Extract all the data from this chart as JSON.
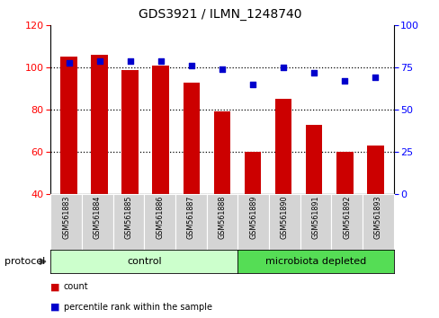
{
  "title": "GDS3921 / ILMN_1248740",
  "samples": [
    "GSM561883",
    "GSM561884",
    "GSM561885",
    "GSM561886",
    "GSM561887",
    "GSM561888",
    "GSM561889",
    "GSM561890",
    "GSM561891",
    "GSM561892",
    "GSM561893"
  ],
  "counts": [
    105,
    106,
    99,
    101,
    93,
    79,
    60,
    85,
    73,
    60,
    63
  ],
  "percentile_ranks": [
    78,
    79,
    79,
    79,
    76,
    74,
    65,
    75,
    72,
    67,
    69
  ],
  "bar_color": "#cc0000",
  "dot_color": "#0000cc",
  "ylim_left": [
    40,
    120
  ],
  "ylim_right": [
    0,
    100
  ],
  "yticks_left": [
    40,
    60,
    80,
    100,
    120
  ],
  "yticks_right": [
    0,
    25,
    50,
    75,
    100
  ],
  "num_control": 6,
  "groups": [
    "control",
    "microbiota depleted"
  ],
  "group_color_light": "#ccffcc",
  "group_color_dark": "#55dd55",
  "protocol_label": "protocol",
  "legend_bar_label": "count",
  "legend_dot_label": "percentile rank within the sample",
  "plot_bg_color": "#ffffff",
  "sample_box_color": "#d4d4d4"
}
